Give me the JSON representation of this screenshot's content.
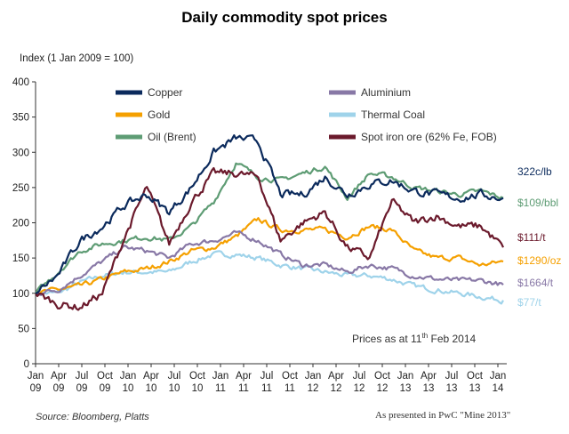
{
  "chart_data": {
    "type": "line",
    "title": "Daily commodity spot prices",
    "ylabel": "Index (1 Jan 2009 = 100)",
    "ylim": [
      0,
      400
    ],
    "yticks": [
      0,
      50,
      100,
      150,
      200,
      250,
      300,
      350,
      400
    ],
    "x_tick_labels": [
      [
        "Jan",
        "09"
      ],
      [
        "Apr",
        "09"
      ],
      [
        "Jul",
        "09"
      ],
      [
        "Oct",
        "09"
      ],
      [
        "Jan",
        "10"
      ],
      [
        "Apr",
        "10"
      ],
      [
        "Jul",
        "10"
      ],
      [
        "Oct",
        "10"
      ],
      [
        "Jan",
        "11"
      ],
      [
        "Apr",
        "11"
      ],
      [
        "Jul",
        "11"
      ],
      [
        "Oct",
        "11"
      ],
      [
        "Jan",
        "12"
      ],
      [
        "Apr",
        "12"
      ],
      [
        "Jul",
        "12"
      ],
      [
        "Oct",
        "12"
      ],
      [
        "Jan",
        "13"
      ],
      [
        "Apr",
        "13"
      ],
      [
        "Jul",
        "13"
      ],
      [
        "Oct",
        "13"
      ],
      [
        "Jan",
        "14"
      ]
    ],
    "x": [
      "2009-01",
      "2009-04",
      "2009-07",
      "2009-10",
      "2010-01",
      "2010-04",
      "2010-07",
      "2010-10",
      "2011-01",
      "2011-04",
      "2011-07",
      "2011-10",
      "2012-01",
      "2012-04",
      "2012-07",
      "2012-10",
      "2013-01",
      "2013-04",
      "2013-07",
      "2013-10",
      "2014-01",
      "2014-02"
    ],
    "grid": false,
    "legend_position": "top",
    "series": [
      {
        "name": "Copper",
        "color": "#0b2a5c",
        "end_label": "322c/lb",
        "values": [
          100,
          125,
          175,
          195,
          225,
          240,
          215,
          250,
          300,
          320,
          315,
          240,
          240,
          265,
          240,
          255,
          260,
          245,
          240,
          235,
          240,
          235
        ]
      },
      {
        "name": "Aluminium",
        "color": "#8878a6",
        "end_label": "$1664/t",
        "values": [
          100,
          105,
          125,
          145,
          165,
          160,
          150,
          170,
          175,
          185,
          175,
          155,
          140,
          140,
          130,
          140,
          135,
          125,
          120,
          118,
          118,
          112
        ]
      },
      {
        "name": "Gold",
        "color": "#f5a000",
        "end_label": "$1290/oz",
        "values": [
          100,
          105,
          110,
          120,
          130,
          135,
          145,
          160,
          165,
          180,
          205,
          190,
          190,
          190,
          180,
          195,
          190,
          160,
          150,
          150,
          140,
          145
        ]
      },
      {
        "name": "Thermal Coal",
        "color": "#9fd3ea",
        "end_label": "$77/t",
        "values": [
          100,
          100,
          115,
          125,
          130,
          130,
          130,
          145,
          155,
          155,
          150,
          140,
          135,
          130,
          125,
          125,
          120,
          110,
          105,
          100,
          95,
          90
        ]
      },
      {
        "name": "Oil (Brent)",
        "color": "#5e9c74",
        "end_label": "$109/bbl",
        "values": [
          100,
          130,
          160,
          170,
          175,
          180,
          175,
          195,
          230,
          285,
          265,
          260,
          270,
          280,
          235,
          270,
          265,
          250,
          245,
          240,
          245,
          235
        ]
      },
      {
        "name": "Spot iron ore (62% Fe, FOB)",
        "color": "#6b1a2c",
        "end_label": "$111/t",
        "values": [
          100,
          85,
          80,
          100,
          180,
          250,
          170,
          230,
          270,
          270,
          265,
          175,
          200,
          215,
          165,
          150,
          230,
          200,
          210,
          195,
          195,
          165
        ]
      }
    ],
    "annotation": {
      "text": "Prices as at 11",
      "sup": "th",
      "rest": " Feb 2014"
    }
  },
  "footer": {
    "source": "Source: Bloomberg, Platts",
    "presented": "As presented in PwC \"Mine 2013\""
  }
}
